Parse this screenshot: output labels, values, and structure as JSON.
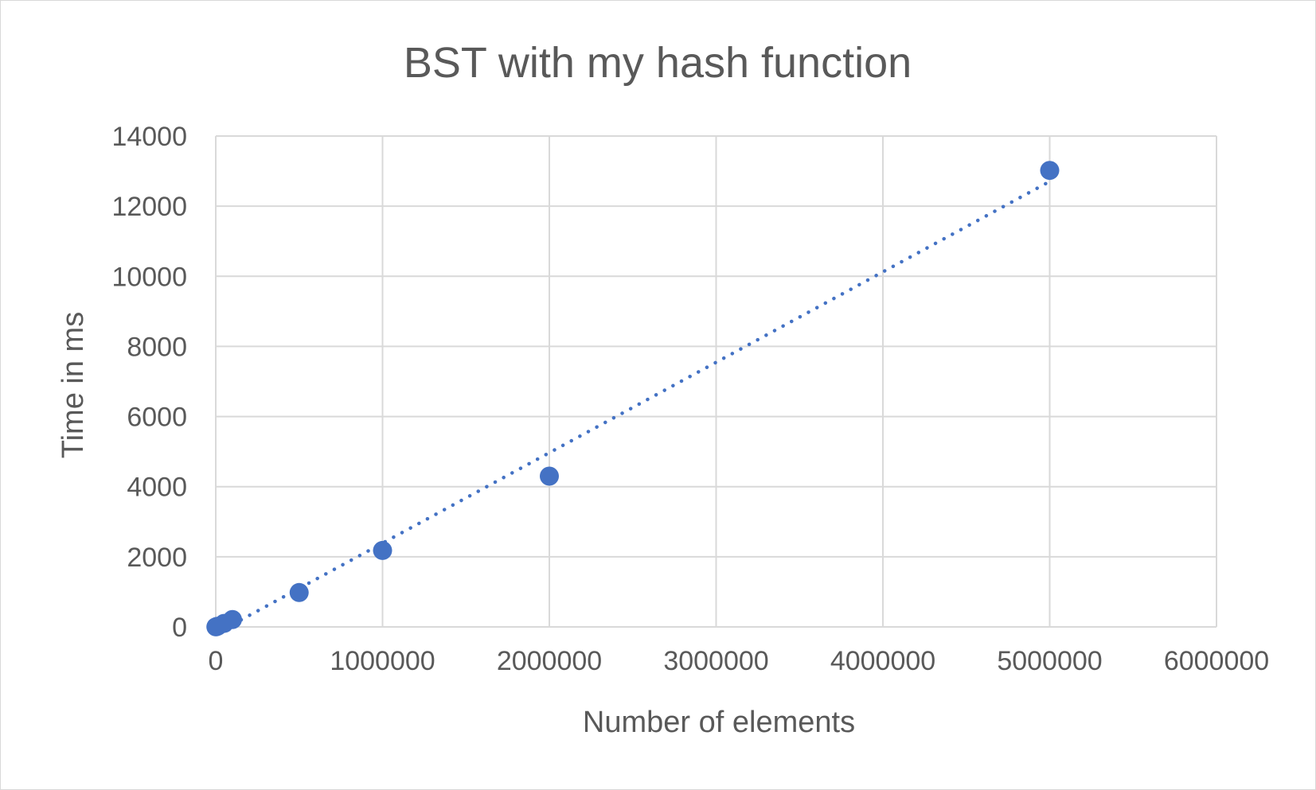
{
  "chart_data": {
    "type": "scatter",
    "title": "BST with my hash function",
    "xlabel": "Number of elements",
    "ylabel": "Time in ms",
    "xlim": [
      0,
      6000000
    ],
    "ylim": [
      0,
      14000
    ],
    "x_ticks": [
      0,
      1000000,
      2000000,
      3000000,
      4000000,
      5000000,
      6000000
    ],
    "y_ticks": [
      0,
      2000,
      4000,
      6000,
      8000,
      10000,
      12000,
      14000
    ],
    "x_tick_labels": [
      "0",
      "1000000",
      "2000000",
      "3000000",
      "4000000",
      "5000000",
      "6000000"
    ],
    "y_tick_labels": [
      "0",
      "2000",
      "4000",
      "6000",
      "8000",
      "10000",
      "12000",
      "14000"
    ],
    "grid": true,
    "series": [
      {
        "color": "#4472C4",
        "points": [
          {
            "x": 1000,
            "y": 2
          },
          {
            "x": 10000,
            "y": 18
          },
          {
            "x": 50000,
            "y": 100
          },
          {
            "x": 100000,
            "y": 210
          },
          {
            "x": 500000,
            "y": 980
          },
          {
            "x": 1000000,
            "y": 2180
          },
          {
            "x": 2000000,
            "y": 4300
          },
          {
            "x": 5000000,
            "y": 13020
          }
        ]
      }
    ],
    "trendline": {
      "type": "linear",
      "style": "dotted",
      "color": "#4472C4",
      "x_range": [
        0,
        5000000
      ]
    }
  }
}
